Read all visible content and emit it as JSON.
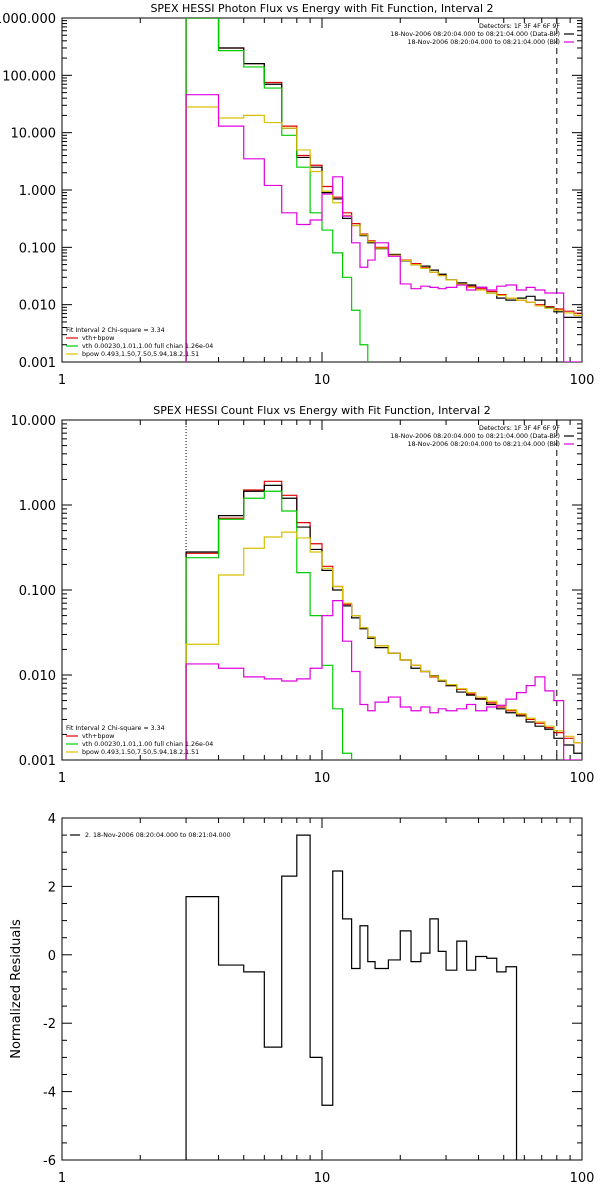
{
  "colors": {
    "data": "#000000",
    "total": "#e00000",
    "vth": "#00cc00",
    "bpow": "#d8c000",
    "background": "#e000e0",
    "axis": "#000000"
  },
  "chart_data": [
    {
      "type": "line",
      "title": "SPEX HESSI Photon Flux vs Energy with Fit Function, Interval 2",
      "xlabel": "",
      "ylabel": "",
      "xscale": "log",
      "yscale": "log",
      "xlim": [
        1,
        100
      ],
      "ylim": [
        0.001,
        1000
      ],
      "xticks": [
        1,
        10,
        100
      ],
      "xtick_labels": [
        "1",
        "10",
        "100"
      ],
      "yticks": [
        0.001,
        0.01,
        0.1,
        1,
        10,
        100,
        1000
      ],
      "ytick_labels": [
        "0.001",
        "0.010",
        "0.100",
        "1.000",
        "10.000",
        "100.000",
        "1000.000"
      ],
      "vlines": [
        {
          "x": 3,
          "style": "dotted"
        },
        {
          "x": 80,
          "style": "dashed"
        }
      ],
      "legend_top_right": [
        {
          "text": "Detectors: 1F 3F 4F 6F 9F",
          "color": ""
        },
        {
          "text": "18-Nov-2006 08:20:04.000 to 08:21:04.000 (Data-Bk)",
          "color": "#000000"
        },
        {
          "text": "18-Nov-2006 08:20:04.000 to 08:21:04.000 (Bk)",
          "color": "#e000e0"
        }
      ],
      "legend_bottom_left": [
        {
          "text": "Fit Interval 2   Chi-square = 3.34",
          "color": ""
        },
        {
          "text": "vth+bpow",
          "color": "#e00000"
        },
        {
          "text": "vth 0.00230,1.01,1.00  full chian 1.26e-04",
          "color": "#00cc00"
        },
        {
          "text": "bpow 0.493,1.50,7.50,5.94,18.2,1.51",
          "color": "#d8c000"
        }
      ],
      "edges": [
        3,
        4,
        5,
        6,
        7,
        8,
        9,
        10,
        11,
        12,
        13,
        14,
        15,
        16,
        18,
        20,
        22,
        24,
        26,
        28,
        30,
        33,
        36,
        39,
        43,
        47,
        51,
        56,
        61,
        66,
        72,
        78,
        85,
        93,
        100
      ],
      "series": [
        {
          "name": "vth+bpow",
          "color": "#e00000",
          "values": [
            1000,
            300,
            160,
            75,
            13,
            4,
            2.7,
            1.15,
            0.75,
            0.4,
            0.26,
            0.17,
            0.13,
            0.1,
            0.075,
            0.06,
            0.052,
            0.044,
            0.037,
            0.033,
            0.027,
            0.023,
            0.021,
            0.019,
            0.017,
            0.015,
            0.013,
            0.012,
            0.011,
            0.01,
            0.0092,
            0.0084,
            0.0077,
            0.0071
          ]
        },
        {
          "name": "Data-Bk",
          "color": "#000000",
          "values": [
            1000,
            300,
            160,
            70,
            12,
            3.7,
            2.5,
            0.9,
            0.7,
            0.32,
            0.24,
            0.16,
            0.12,
            0.095,
            0.075,
            0.058,
            0.05,
            0.047,
            0.04,
            0.034,
            0.027,
            0.024,
            0.022,
            0.02,
            0.016,
            0.013,
            0.012,
            0.013,
            0.014,
            0.012,
            0.009,
            0.0075,
            0.006,
            0.006
          ]
        },
        {
          "name": "vth",
          "color": "#00cc00",
          "values": [
            1000,
            270,
            140,
            60,
            9,
            2.5,
            0.4,
            0.2,
            0.08,
            0.03,
            0.008,
            0.002,
            0.0005
          ]
        },
        {
          "name": "bpow",
          "color": "#d8c000",
          "values": [
            28,
            18,
            20,
            15,
            12,
            5,
            2.1,
            0.95,
            0.6,
            0.36,
            0.24,
            0.165,
            0.125,
            0.097,
            0.073,
            0.059,
            0.05,
            0.043,
            0.037,
            0.032,
            0.027,
            0.023,
            0.02,
            0.018,
            0.016,
            0.0145,
            0.013,
            0.012,
            0.011,
            0.0095,
            0.0087,
            0.008,
            0.0072,
            0.0065
          ]
        },
        {
          "name": "Bk",
          "color": "#e000e0",
          "values": [
            46,
            13,
            3.5,
            1.2,
            0.4,
            0.25,
            0.3,
            0.85,
            1.7,
            0.35,
            0.12,
            0.045,
            0.06,
            0.12,
            0.07,
            0.023,
            0.019,
            0.021,
            0.02,
            0.019,
            0.02,
            0.022,
            0.018,
            0.02,
            0.018,
            0.021,
            0.022,
            0.018,
            0.02,
            0.018,
            0.016,
            0.016,
            0.001,
            0.001
          ]
        }
      ]
    },
    {
      "type": "line",
      "title": "SPEX HESSI Count Flux vs Energy with Fit Function, Interval 2",
      "xlabel": "",
      "ylabel": "",
      "xscale": "log",
      "yscale": "log",
      "xlim": [
        1,
        100
      ],
      "ylim": [
        0.001,
        10
      ],
      "xticks": [
        1,
        10,
        100
      ],
      "xtick_labels": [
        "1",
        "10",
        "100"
      ],
      "yticks": [
        0.001,
        0.01,
        0.1,
        1,
        10
      ],
      "ytick_labels": [
        "0.001",
        "0.010",
        "0.100",
        "1.000",
        "10.000"
      ],
      "vlines": [
        {
          "x": 3,
          "style": "dotted"
        },
        {
          "x": 80,
          "style": "dashed"
        }
      ],
      "legend_top_right": [
        {
          "text": "Detectors: 1F 3F 4F 6F 9F",
          "color": ""
        },
        {
          "text": "18-Nov-2006 08:20:04.000 to 08:21:04.000 (Data-Bk)",
          "color": "#000000"
        },
        {
          "text": "18-Nov-2006 08:20:04.000 to 08:21:04.000 (Bk)",
          "color": "#e000e0"
        }
      ],
      "legend_bottom_left": [
        {
          "text": "Fit Interval 2   Chi-square = 3.34",
          "color": ""
        },
        {
          "text": "vth+bpow",
          "color": "#e00000"
        },
        {
          "text": "vth 0.00230,1.01,1.00  full chian 1.26e-04",
          "color": "#00cc00"
        },
        {
          "text": "bpow 0.493,1.50,7.50,5.94,18.2,1.51",
          "color": "#d8c000"
        }
      ],
      "edges": [
        3,
        4,
        5,
        6,
        7,
        8,
        9,
        10,
        11,
        12,
        13,
        14,
        15,
        16,
        18,
        20,
        22,
        24,
        26,
        28,
        30,
        33,
        36,
        39,
        43,
        47,
        51,
        56,
        61,
        66,
        72,
        78,
        85,
        93,
        100
      ],
      "series": [
        {
          "name": "vth+bpow",
          "color": "#e00000",
          "values": [
            0.27,
            0.7,
            1.5,
            1.9,
            1.3,
            0.62,
            0.35,
            0.19,
            0.11,
            0.068,
            0.05,
            0.036,
            0.028,
            0.022,
            0.018,
            0.015,
            0.013,
            0.011,
            0.0095,
            0.0085,
            0.0075,
            0.0068,
            0.006,
            0.0053,
            0.0047,
            0.0042,
            0.0038,
            0.0034,
            0.003,
            0.0027,
            0.0024,
            0.0021,
            0.0018,
            0.0016
          ]
        },
        {
          "name": "Data-Bk",
          "color": "#000000",
          "values": [
            0.28,
            0.75,
            1.45,
            1.7,
            1.2,
            0.55,
            0.3,
            0.17,
            0.1,
            0.065,
            0.047,
            0.035,
            0.027,
            0.021,
            0.018,
            0.015,
            0.012,
            0.011,
            0.0098,
            0.0085,
            0.0075,
            0.0063,
            0.0058,
            0.0052,
            0.0045,
            0.004,
            0.0036,
            0.0033,
            0.0028,
            0.0025,
            0.0023,
            0.0018,
            0.0015,
            0.0012
          ]
        },
        {
          "name": "vth",
          "color": "#00cc00",
          "values": [
            0.24,
            0.68,
            1.2,
            1.45,
            0.85,
            0.16,
            0.05,
            0.013,
            0.004,
            0.0012,
            0.0005
          ]
        },
        {
          "name": "bpow",
          "color": "#d8c000",
          "values": [
            0.023,
            0.15,
            0.31,
            0.42,
            0.48,
            0.41,
            0.28,
            0.18,
            0.11,
            0.07,
            0.05,
            0.036,
            0.028,
            0.022,
            0.018,
            0.015,
            0.013,
            0.011,
            0.0097,
            0.0087,
            0.0077,
            0.0069,
            0.0062,
            0.0055,
            0.0049,
            0.0044,
            0.0039,
            0.0035,
            0.0031,
            0.0028,
            0.0025,
            0.0022,
            0.0019,
            0.0016
          ]
        },
        {
          "name": "Bk",
          "color": "#e000e0",
          "values": [
            0.0135,
            0.012,
            0.0095,
            0.009,
            0.0085,
            0.009,
            0.012,
            0.05,
            0.075,
            0.025,
            0.011,
            0.0045,
            0.0038,
            0.0048,
            0.0055,
            0.0042,
            0.0038,
            0.0042,
            0.0036,
            0.004,
            0.0038,
            0.004,
            0.0045,
            0.0038,
            0.0042,
            0.0044,
            0.0052,
            0.0062,
            0.0075,
            0.0095,
            0.0065,
            0.005,
            0.001,
            0.001
          ]
        }
      ]
    },
    {
      "type": "line",
      "title": "",
      "xlabel": "",
      "ylabel": "Normalized Residuals",
      "xscale": "log",
      "yscale": "linear",
      "xlim": [
        1,
        100
      ],
      "ylim": [
        -6,
        4
      ],
      "xticks": [
        1,
        10,
        100
      ],
      "xtick_labels": [
        "1",
        "10",
        "100"
      ],
      "yticks": [
        -6,
        -4,
        -2,
        0,
        2,
        4
      ],
      "ytick_labels": [
        "-6",
        "-4",
        "-2",
        "0",
        "2",
        "4"
      ],
      "legend_top_left": [
        {
          "text": "2. 18-Nov-2006 08:20:04.000 to 08:21:04.000",
          "color": "#000000"
        }
      ],
      "edges": [
        3,
        4,
        5,
        6,
        7,
        8,
        9,
        10,
        11,
        12,
        13,
        14,
        15,
        16,
        18,
        20,
        22,
        24,
        26,
        28,
        30,
        33,
        36,
        39,
        43,
        47,
        51,
        56,
        61,
        66,
        72,
        78,
        85
      ],
      "series": [
        {
          "name": "",
          "color": "#000000",
          "values": [
            1.7,
            -0.3,
            -0.5,
            -2.7,
            2.3,
            3.5,
            -3.0,
            -4.4,
            2.45,
            1.05,
            -0.4,
            0.85,
            -0.2,
            -0.4,
            -0.15,
            0.7,
            -0.2,
            0.05,
            1.05,
            0.1,
            -0.45,
            0.4,
            -0.45,
            -0.05,
            -0.1,
            -0.5,
            -0.35
          ]
        }
      ]
    }
  ]
}
